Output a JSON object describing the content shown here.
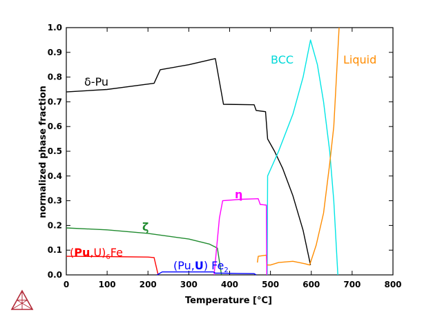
{
  "chart_data": {
    "type": "line",
    "title": "",
    "xlabel": "Temperature [°C]",
    "ylabel": "normalized phase fraction",
    "xlim": [
      0,
      800
    ],
    "ylim": [
      0,
      1.0
    ],
    "xticks": [
      0,
      100,
      200,
      300,
      400,
      500,
      600,
      700,
      800
    ],
    "yticks": [
      0.0,
      0.1,
      0.2,
      0.3,
      0.4,
      0.5,
      0.6,
      0.7,
      0.8,
      0.9,
      1.0
    ],
    "xtick_labels": [
      "0",
      "100",
      "200",
      "300",
      "400",
      "500",
      "600",
      "700",
      "800"
    ],
    "ytick_labels": [
      "0.0",
      "0.1",
      "0.2",
      "0.3",
      "0.4",
      "0.5",
      "0.6",
      "0.7",
      "0.8",
      "0.9",
      "1.0"
    ],
    "grid": false,
    "series": [
      {
        "name": "δ-Pu",
        "label": "δ-Pu",
        "color": "#000000",
        "points": [
          [
            0,
            0.74
          ],
          [
            100,
            0.75
          ],
          [
            215,
            0.775
          ],
          [
            230,
            0.83
          ],
          [
            300,
            0.85
          ],
          [
            365,
            0.875
          ],
          [
            385,
            0.69
          ],
          [
            460,
            0.688
          ],
          [
            465,
            0.665
          ],
          [
            488,
            0.66
          ],
          [
            493,
            0.55
          ],
          [
            510,
            0.5
          ],
          [
            530,
            0.43
          ],
          [
            555,
            0.32
          ],
          [
            580,
            0.18
          ],
          [
            598,
            0.04
          ]
        ]
      },
      {
        "name": "BCC",
        "label": "BCC",
        "color": "#00e5e5",
        "points": [
          [
            492,
            0
          ],
          [
            493,
            0.4
          ],
          [
            520,
            0.5
          ],
          [
            555,
            0.65
          ],
          [
            580,
            0.8
          ],
          [
            598,
            0.95
          ],
          [
            615,
            0.85
          ],
          [
            630,
            0.7
          ],
          [
            645,
            0.5
          ],
          [
            655,
            0.3
          ],
          [
            665,
            0.0
          ]
        ]
      },
      {
        "name": "Liquid",
        "label": "Liquid",
        "color": "#ff8c00",
        "points": [
          [
            468,
            0.05
          ],
          [
            470,
            0.075
          ],
          [
            490,
            0.08
          ],
          [
            491,
            0.04
          ],
          [
            500,
            0.04
          ],
          [
            520,
            0.05
          ],
          [
            555,
            0.055
          ],
          [
            585,
            0.045
          ],
          [
            596,
            0.04
          ],
          [
            612,
            0.12
          ],
          [
            630,
            0.25
          ],
          [
            645,
            0.45
          ],
          [
            655,
            0.6
          ],
          [
            668,
            1.0
          ]
        ]
      },
      {
        "name": "ζ",
        "label": "ζ",
        "color": "#1f8a2e",
        "points": [
          [
            0,
            0.19
          ],
          [
            100,
            0.182
          ],
          [
            200,
            0.168
          ],
          [
            300,
            0.145
          ],
          [
            350,
            0.125
          ],
          [
            370,
            0.108
          ],
          [
            380,
            0
          ]
        ]
      },
      {
        "name": "η",
        "label": "η",
        "color": "#ff00ff",
        "points": [
          [
            362,
            0
          ],
          [
            375,
            0.23
          ],
          [
            383,
            0.3
          ],
          [
            430,
            0.306
          ],
          [
            470,
            0.308
          ],
          [
            475,
            0.285
          ],
          [
            490,
            0.282
          ],
          [
            491,
            0
          ]
        ]
      },
      {
        "name": "(Pu,U)6Fe",
        "label_parts": [
          "(",
          "Pu",
          ",U)",
          "6",
          "Fe"
        ],
        "color": "#ff0000",
        "points": [
          [
            0,
            0.075
          ],
          [
            100,
            0.074
          ],
          [
            200,
            0.072
          ],
          [
            215,
            0.07
          ],
          [
            225,
            0.0
          ]
        ]
      },
      {
        "name": "(Pu,U)Fe2",
        "label_parts": [
          "(Pu,",
          "U",
          ") Fe",
          "2"
        ],
        "color": "#0000ff",
        "points": [
          [
            222,
            0
          ],
          [
            235,
            0.012
          ],
          [
            300,
            0.012
          ],
          [
            360,
            0.012
          ],
          [
            365,
            0.007
          ],
          [
            380,
            0.007
          ],
          [
            420,
            0.006
          ],
          [
            460,
            0.005
          ],
          [
            465,
            0
          ]
        ]
      }
    ]
  },
  "logo": {
    "name": "Thermo-Calc triangle logo",
    "color": "#b22a38"
  }
}
